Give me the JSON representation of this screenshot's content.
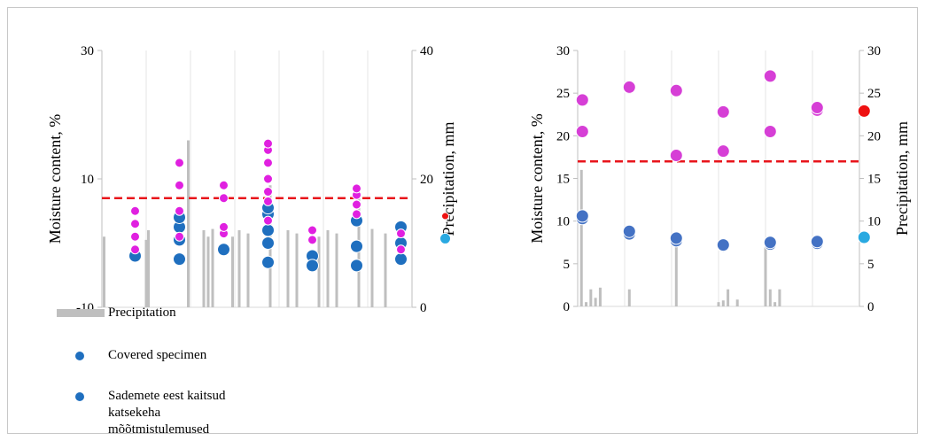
{
  "chart_data": [
    {
      "type": "scatter",
      "title": "",
      "ylabel": "Moisture content, %",
      "y2label": "Precipitation, mm",
      "ylim": [
        -10,
        30
      ],
      "yticks": [
        "30",
        "10",
        "-10"
      ],
      "y2lim": [
        0,
        40
      ],
      "y2ticks": [
        "40",
        "20",
        "0"
      ],
      "threshold": 7,
      "groups": 7,
      "series": [
        {
          "name": "Precipitation",
          "kind": "bar",
          "color": "#bfbfbf",
          "points": [
            [
              0.05,
              11
            ],
            [
              1.0,
              10.5
            ],
            [
              1.05,
              12
            ],
            [
              1.95,
              26
            ],
            [
              2.3,
              12
            ],
            [
              2.4,
              11
            ],
            [
              2.5,
              12.2
            ],
            [
              2.95,
              11
            ],
            [
              3.1,
              12
            ],
            [
              3.3,
              11.5
            ],
            [
              3.8,
              19
            ],
            [
              4.2,
              12
            ],
            [
              4.4,
              11.5
            ],
            [
              4.9,
              11
            ],
            [
              5.1,
              12
            ],
            [
              5.3,
              11.5
            ],
            [
              5.8,
              18
            ],
            [
              6.1,
              12.2
            ],
            [
              6.4,
              11.5
            ]
          ]
        },
        {
          "name": "Covered specimen",
          "kind": "scatter",
          "color": "#1f6fbf",
          "size": 7,
          "points": [
            [
              0.75,
              -2
            ],
            [
              1.75,
              -2.5
            ],
            [
              1.75,
              0.5
            ],
            [
              1.75,
              2.5
            ],
            [
              1.75,
              4
            ],
            [
              2.75,
              -1
            ],
            [
              3.75,
              -3
            ],
            [
              3.75,
              0
            ],
            [
              3.75,
              2
            ],
            [
              3.75,
              4.5
            ],
            [
              3.75,
              5.5
            ],
            [
              4.75,
              -2
            ],
            [
              4.75,
              -3.5
            ],
            [
              5.75,
              -3.5
            ],
            [
              5.75,
              -0.5
            ],
            [
              5.75,
              3.5
            ],
            [
              6.75,
              -2.5
            ],
            [
              6.75,
              0
            ],
            [
              6.75,
              2.5
            ]
          ]
        },
        {
          "name": "Sademete eest kaitsud katsekeha mõõtmistulemused",
          "kind": "scatter",
          "color": "#e020e0",
          "size": 5,
          "points": [
            [
              0.75,
              -1
            ],
            [
              0.75,
              1
            ],
            [
              0.75,
              3
            ],
            [
              0.75,
              5
            ],
            [
              1.75,
              1
            ],
            [
              1.75,
              5
            ],
            [
              1.75,
              9
            ],
            [
              1.75,
              12.5
            ],
            [
              2.75,
              1.5
            ],
            [
              2.75,
              2.5
            ],
            [
              2.75,
              7
            ],
            [
              2.75,
              9
            ],
            [
              3.75,
              3.5
            ],
            [
              3.75,
              6.5
            ],
            [
              3.75,
              8
            ],
            [
              3.75,
              10
            ],
            [
              3.75,
              12.5
            ],
            [
              3.75,
              14.5
            ],
            [
              3.75,
              15.5
            ],
            [
              4.75,
              0.5
            ],
            [
              4.75,
              2
            ],
            [
              5.75,
              4.5
            ],
            [
              5.75,
              6
            ],
            [
              5.75,
              7.5
            ],
            [
              5.75,
              8.5
            ],
            [
              6.75,
              -1
            ],
            [
              6.75,
              1.5
            ]
          ]
        },
        {
          "name": "",
          "kind": "scatter",
          "color": "#ee1111",
          "size": 4,
          "points": [
            [
              7.75,
              4.2
            ]
          ]
        },
        {
          "name": "",
          "kind": "scatter",
          "color": "#29a9e1",
          "size": 6,
          "points": [
            [
              7.75,
              0.7
            ]
          ]
        }
      ],
      "legend": [
        "Precipitation",
        "Covered specimen",
        "Sademete eest kaitsud katsekeha mõõtmistulemused"
      ],
      "legend_position": "bottom-left"
    },
    {
      "type": "scatter",
      "title": "",
      "ylabel": "Moisture content, %",
      "y2label": "Precipitation, mm",
      "ylim": [
        0,
        30
      ],
      "yticks": [
        "30",
        "25",
        "20",
        "15",
        "10",
        "5",
        "0"
      ],
      "y2lim": [
        0,
        30
      ],
      "y2ticks": [
        "30",
        "25",
        "20",
        "15",
        "10",
        "5",
        "0"
      ],
      "threshold": 17,
      "groups": 6,
      "series": [
        {
          "name": "",
          "kind": "bar",
          "color": "#bfbfbf",
          "points": [
            [
              0.08,
              16
            ],
            [
              0.18,
              0.5
            ],
            [
              0.28,
              2
            ],
            [
              0.38,
              1
            ],
            [
              0.48,
              2.2
            ],
            [
              1.1,
              2
            ],
            [
              2.1,
              8.5
            ],
            [
              3.0,
              0.5
            ],
            [
              3.1,
              0.7
            ],
            [
              3.2,
              2
            ],
            [
              3.4,
              0.8
            ],
            [
              4.0,
              7.5
            ],
            [
              4.1,
              2
            ],
            [
              4.2,
              0.5
            ],
            [
              4.3,
              2
            ]
          ]
        },
        {
          "name": "",
          "kind": "scatter",
          "color": "#4472c4",
          "size": 7,
          "points": [
            [
              0.1,
              10.3
            ],
            [
              0.1,
              10.6
            ],
            [
              1.1,
              8.5
            ],
            [
              1.1,
              8.8
            ],
            [
              2.1,
              7.7
            ],
            [
              2.1,
              8.0
            ],
            [
              3.1,
              7.1
            ],
            [
              3.1,
              7.2
            ],
            [
              4.1,
              7.3
            ],
            [
              4.1,
              7.5
            ],
            [
              5.1,
              7.4
            ],
            [
              5.1,
              7.6
            ]
          ]
        },
        {
          "name": "",
          "kind": "scatter",
          "color": "#d63fd6",
          "size": 7,
          "points": [
            [
              0.1,
              20.5
            ],
            [
              0.1,
              24.2
            ],
            [
              1.1,
              25.6
            ],
            [
              1.1,
              25.7
            ],
            [
              2.1,
              17.7
            ],
            [
              2.1,
              25.3
            ],
            [
              3.1,
              18.2
            ],
            [
              3.1,
              22.8
            ],
            [
              4.1,
              20.5
            ],
            [
              4.1,
              27
            ],
            [
              5.1,
              23
            ],
            [
              5.1,
              23.3
            ]
          ]
        },
        {
          "name": "",
          "kind": "scatter",
          "color": "#ee1111",
          "size": 7,
          "points": [
            [
              6.1,
              22.9
            ]
          ]
        },
        {
          "name": "",
          "kind": "scatter",
          "color": "#29a9e1",
          "size": 7,
          "points": [
            [
              6.1,
              8.1
            ]
          ]
        }
      ]
    }
  ]
}
